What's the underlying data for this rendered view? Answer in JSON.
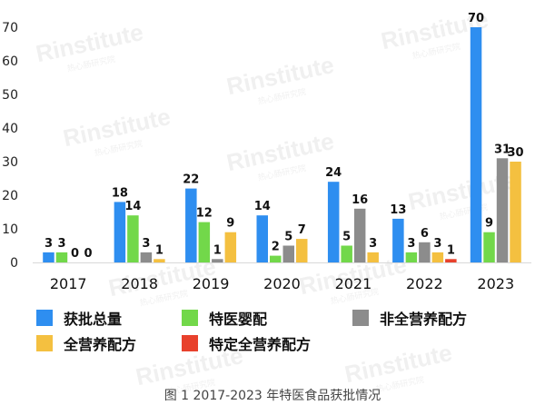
{
  "caption": "图 1 2017-2023 年特医食品获批情况",
  "watermark": "Rinstitute",
  "watermark_sub": "热心肠研究院",
  "chart_data": {
    "type": "bar",
    "categories": [
      "2017",
      "2018",
      "2019",
      "2020",
      "2021",
      "2022",
      "2023"
    ],
    "series": [
      {
        "name": "获批总量",
        "color": "#2e8ef0",
        "values": [
          3,
          18,
          22,
          14,
          24,
          13,
          70
        ]
      },
      {
        "name": "特医婴配",
        "color": "#72d84a",
        "values": [
          3,
          14,
          12,
          2,
          5,
          3,
          9
        ]
      },
      {
        "name": "非全营养配方",
        "color": "#8c8c8c",
        "values": [
          0,
          3,
          1,
          5,
          16,
          6,
          31
        ]
      },
      {
        "name": "全营养配方",
        "color": "#f4c040",
        "values": [
          0,
          1,
          9,
          7,
          3,
          3,
          30
        ]
      },
      {
        "name": "特定全营养配方",
        "color": "#e8412c",
        "values": [
          null,
          null,
          null,
          null,
          null,
          1,
          null
        ]
      }
    ],
    "ylim": [
      0,
      70
    ],
    "yticks": [
      0,
      10,
      20,
      30,
      40,
      50,
      60,
      70
    ],
    "grid": false,
    "legend_position": "bottom"
  }
}
